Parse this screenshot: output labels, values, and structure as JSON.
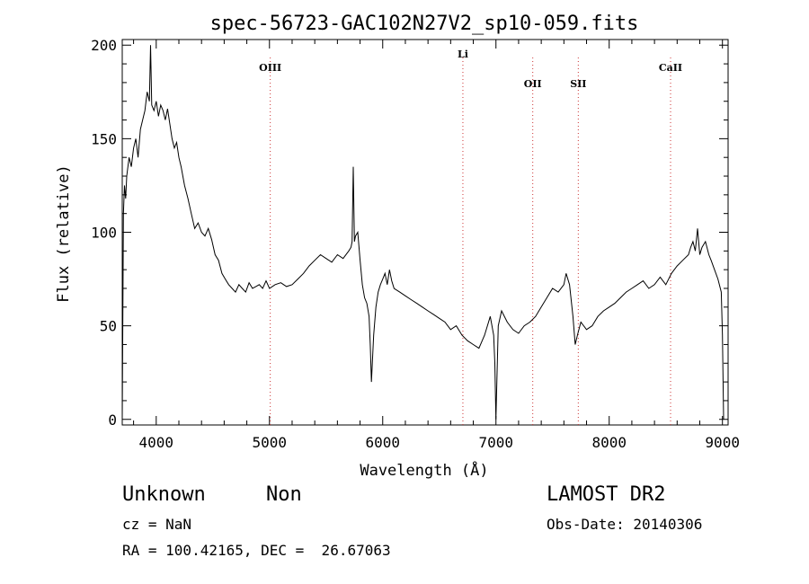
{
  "chart_data": {
    "type": "line",
    "title": "spec-56723-GAC102N27V2_sp10-059.fits",
    "xlabel": "Wavelength (Å)",
    "ylabel": "Flux (relative)",
    "xlim": [
      3700,
      9050
    ],
    "ylim": [
      -3,
      203
    ],
    "xticks": [
      4000,
      5000,
      6000,
      7000,
      8000,
      9000
    ],
    "yticks": [
      0,
      50,
      100,
      150,
      200
    ],
    "grid": false,
    "line_color": "#000000",
    "line_markers_color": "#cc3333",
    "lines": [
      {
        "name": "OIII",
        "wavelength": 5007
      },
      {
        "name": "Li",
        "wavelength": 6708
      },
      {
        "name": "OII",
        "wavelength": 7325
      },
      {
        "name": "SII",
        "wavelength": 7727
      },
      {
        "name": "CaII",
        "wavelength": 8542
      }
    ],
    "series": [
      {
        "x": [
          3700,
          3710,
          3720,
          3730,
          3740,
          3760,
          3780,
          3800,
          3820,
          3840,
          3860,
          3880,
          3900,
          3920,
          3940,
          3950,
          3960,
          3980,
          4000,
          4020,
          4040,
          4060,
          4080,
          4100,
          4120,
          4140,
          4160,
          4180,
          4200,
          4220,
          4250,
          4280,
          4310,
          4340,
          4370,
          4400,
          4430,
          4460,
          4490,
          4520,
          4550,
          4580,
          4610,
          4640,
          4670,
          4700,
          4730,
          4760,
          4790,
          4820,
          4850,
          4880,
          4910,
          4940,
          4970,
          5000,
          5050,
          5100,
          5150,
          5200,
          5250,
          5300,
          5350,
          5400,
          5450,
          5500,
          5550,
          5600,
          5650,
          5700,
          5720,
          5730,
          5740,
          5750,
          5760,
          5780,
          5800,
          5820,
          5840,
          5860,
          5880,
          5890,
          5900,
          5920,
          5940,
          5960,
          5980,
          6000,
          6020,
          6040,
          6060,
          6080,
          6100,
          6150,
          6200,
          6250,
          6300,
          6350,
          6400,
          6450,
          6500,
          6550,
          6600,
          6650,
          6700,
          6750,
          6800,
          6850,
          6900,
          6950,
          6980,
          6990,
          7000,
          7020,
          7050,
          7100,
          7150,
          7200,
          7250,
          7300,
          7350,
          7400,
          7450,
          7500,
          7550,
          7600,
          7620,
          7650,
          7680,
          7700,
          7720,
          7750,
          7800,
          7850,
          7900,
          7950,
          8000,
          8050,
          8100,
          8150,
          8200,
          8250,
          8300,
          8350,
          8400,
          8450,
          8500,
          8550,
          8600,
          8650,
          8700,
          8720,
          8740,
          8760,
          8780,
          8800,
          8820,
          8850,
          8880,
          8900,
          8930,
          8960,
          8990,
          9000,
          9010
        ],
        "values": [
          0,
          110,
          125,
          118,
          130,
          140,
          135,
          145,
          150,
          140,
          155,
          160,
          165,
          175,
          170,
          200,
          168,
          165,
          170,
          162,
          168,
          165,
          160,
          166,
          158,
          150,
          145,
          148,
          140,
          135,
          125,
          118,
          110,
          102,
          105,
          100,
          98,
          102,
          96,
          88,
          85,
          78,
          75,
          72,
          70,
          68,
          72,
          70,
          68,
          73,
          70,
          71,
          72,
          70,
          74,
          70,
          72,
          73,
          71,
          72,
          75,
          78,
          82,
          85,
          88,
          86,
          84,
          88,
          86,
          90,
          92,
          95,
          135,
          95,
          98,
          100,
          85,
          72,
          65,
          62,
          55,
          40,
          20,
          45,
          60,
          68,
          72,
          75,
          78,
          72,
          80,
          74,
          70,
          68,
          66,
          64,
          62,
          60,
          58,
          56,
          54,
          52,
          48,
          50,
          45,
          42,
          40,
          38,
          45,
          55,
          45,
          30,
          0,
          50,
          58,
          52,
          48,
          46,
          50,
          52,
          55,
          60,
          65,
          70,
          68,
          72,
          78,
          72,
          55,
          40,
          45,
          52,
          48,
          50,
          55,
          58,
          60,
          62,
          65,
          68,
          70,
          72,
          74,
          70,
          72,
          76,
          72,
          78,
          82,
          85,
          88,
          92,
          95,
          90,
          102,
          88,
          92,
          95,
          88,
          85,
          80,
          75,
          68,
          45,
          0
        ]
      }
    ]
  },
  "info": {
    "class": "Unknown",
    "subclass": "Non",
    "survey": "LAMOST DR2",
    "cz": "cz = NaN",
    "obs_date": "Obs-Date: 20140306",
    "coords": "RA = 100.42165, DEC =  26.67063"
  }
}
